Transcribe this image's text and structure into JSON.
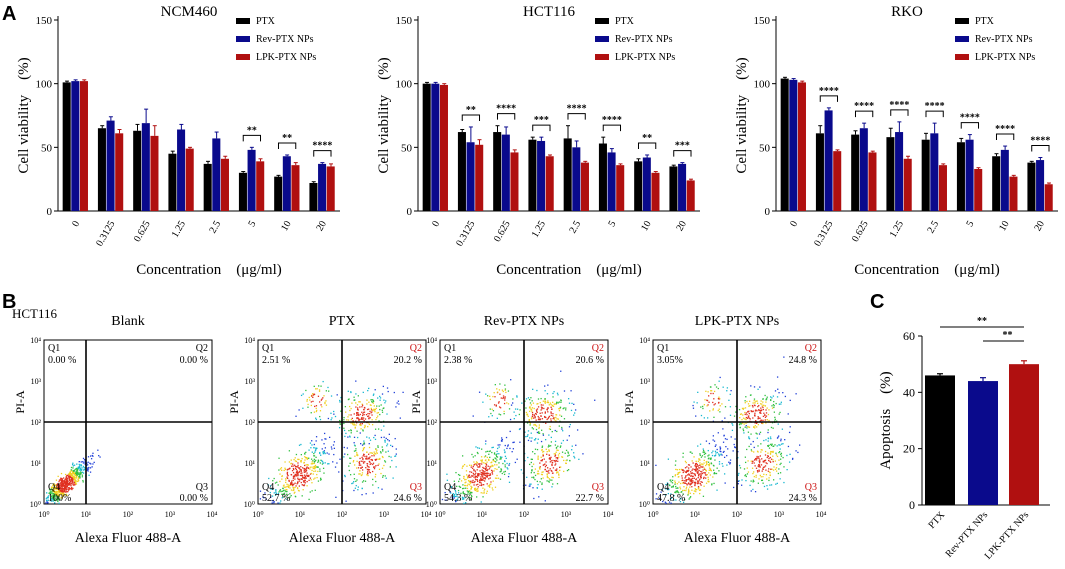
{
  "panel_labels": {
    "a": "A",
    "b": "B",
    "c": "C"
  },
  "colors": {
    "PTX": "#000000",
    "Rev-PTX NPs": "#0a0a8c",
    "LPK-PTX NPs": "#b01010"
  },
  "chart_data": [
    {
      "type": "bar",
      "title": "NCM460",
      "categories": [
        "0",
        "0.3125",
        "0.625",
        "1.25",
        "2.5",
        "5",
        "10",
        "20"
      ],
      "series": [
        {
          "name": "PTX",
          "values": [
            101,
            65,
            63,
            45,
            37,
            30,
            27,
            22
          ],
          "errors": [
            1,
            2,
            5,
            2,
            2,
            1,
            1,
            1
          ]
        },
        {
          "name": "Rev-PTX NPs",
          "values": [
            102,
            71,
            69,
            64,
            57,
            48,
            43,
            37
          ],
          "errors": [
            1,
            3,
            11,
            4,
            5,
            2,
            1,
            1
          ]
        },
        {
          "name": "LPK-PTX NPs",
          "values": [
            102,
            61,
            59,
            49,
            41,
            39,
            36,
            35
          ],
          "errors": [
            1,
            3,
            8,
            1,
            2,
            2,
            2,
            2
          ]
        }
      ],
      "xlabel": "Concentration　(μg/ml)",
      "ylabel": "Cell viability　(%)",
      "ylim": [
        0,
        150
      ],
      "yticks": [
        "0",
        "50",
        "100",
        "150"
      ],
      "significance": [
        {
          "from": "5",
          "label": "**"
        },
        {
          "from": "10",
          "label": "**"
        },
        {
          "from": "20",
          "label": "****"
        }
      ]
    },
    {
      "type": "bar",
      "title": "HCT116",
      "categories": [
        "0",
        "0.3125",
        "0.625",
        "1.25",
        "2.5",
        "5",
        "10",
        "20"
      ],
      "series": [
        {
          "name": "PTX",
          "values": [
            100,
            62,
            62,
            56,
            57,
            53,
            39,
            35
          ],
          "errors": [
            1,
            2,
            5,
            2,
            10,
            5,
            2,
            1
          ]
        },
        {
          "name": "Rev-PTX NPs",
          "values": [
            100,
            54,
            60,
            55,
            50,
            46,
            42,
            37
          ],
          "errors": [
            1,
            12,
            6,
            3,
            5,
            3,
            2,
            1
          ]
        },
        {
          "name": "LPK-PTX NPs",
          "values": [
            99,
            52,
            46,
            43,
            38,
            36,
            30,
            24
          ],
          "errors": [
            1,
            4,
            2,
            1,
            1,
            1,
            1,
            1
          ]
        }
      ],
      "xlabel": "Concentration　(μg/ml)",
      "ylabel": "Cell viability　(%)",
      "ylim": [
        0,
        150
      ],
      "yticks": [
        "0",
        "50",
        "100",
        "150"
      ],
      "significance": [
        {
          "from": "0.3125",
          "label": "**"
        },
        {
          "from": "0.625",
          "label": "****"
        },
        {
          "from": "1.25",
          "label": "***"
        },
        {
          "from": "2.5",
          "label": "****"
        },
        {
          "from": "5",
          "label": "****"
        },
        {
          "from": "10",
          "label": "**"
        },
        {
          "from": "20",
          "label": "***"
        }
      ]
    },
    {
      "type": "bar",
      "title": "RKO",
      "categories": [
        "0",
        "0.3125",
        "0.625",
        "1.25",
        "2.5",
        "5",
        "10",
        "20"
      ],
      "series": [
        {
          "name": "PTX",
          "values": [
            104,
            61,
            60,
            58,
            56,
            54,
            43,
            38
          ],
          "errors": [
            1,
            6,
            3,
            7,
            5,
            3,
            2,
            1
          ]
        },
        {
          "name": "Rev-PTX NPs",
          "values": [
            103,
            79,
            65,
            62,
            61,
            56,
            48,
            40
          ],
          "errors": [
            1,
            2,
            4,
            8,
            8,
            4,
            3,
            2
          ]
        },
        {
          "name": "LPK-PTX NPs",
          "values": [
            101,
            47,
            46,
            41,
            36,
            33,
            27,
            21
          ],
          "errors": [
            1,
            1,
            1,
            2,
            1,
            1,
            1,
            1
          ]
        }
      ],
      "xlabel": "Concentration　(μg/ml)",
      "ylabel": "Cell viability　(%)",
      "ylim": [
        0,
        150
      ],
      "yticks": [
        "0",
        "50",
        "100",
        "150"
      ],
      "significance": [
        {
          "from": "0.3125",
          "label": "****"
        },
        {
          "from": "0.625",
          "label": "****"
        },
        {
          "from": "1.25",
          "label": "****"
        },
        {
          "from": "2.5",
          "label": "****"
        },
        {
          "from": "5",
          "label": "****"
        },
        {
          "from": "10",
          "label": "****"
        },
        {
          "from": "20",
          "label": "****"
        }
      ]
    },
    {
      "type": "scatter",
      "title": "Blank",
      "cell_line": "HCT116",
      "xlabel": "Alexa Fluor 488-A",
      "ylabel": "PI-A",
      "ticks": [
        "10⁰",
        "10¹",
        "10²",
        "10³",
        "10⁴"
      ],
      "quadrants": {
        "Q1": {
          "label": "Q1",
          "value": "0.00 %"
        },
        "Q2": {
          "label": "Q2",
          "value": "0.00 %"
        },
        "Q3": {
          "label": "Q3",
          "value": "0.00 %"
        },
        "Q4": {
          "label": "Q4",
          "value": "100%"
        }
      }
    },
    {
      "type": "scatter",
      "title": "PTX",
      "xlabel": "Alexa Fluor 488-A",
      "ylabel": "PI-A",
      "ticks": [
        "10⁰",
        "10¹",
        "10²",
        "10³",
        "10⁴"
      ],
      "quadrants": {
        "Q1": {
          "label": "Q1",
          "value": "2.51 %"
        },
        "Q2": {
          "label": "Q2",
          "value": "20.2 %"
        },
        "Q3": {
          "label": "Q3",
          "value": "24.6 %"
        },
        "Q4": {
          "label": "Q4",
          "value": "52.7 %"
        }
      }
    },
    {
      "type": "scatter",
      "title": "Rev-PTX NPs",
      "xlabel": "Alexa Fluor 488-A",
      "ylabel": "PI-A",
      "ticks": [
        "10⁰",
        "10¹",
        "10²",
        "10³",
        "10⁴"
      ],
      "quadrants": {
        "Q1": {
          "label": "Q1",
          "value": "2.38 %"
        },
        "Q2": {
          "label": "Q2",
          "value": "20.6 %"
        },
        "Q3": {
          "label": "Q3",
          "value": "22.7 %"
        },
        "Q4": {
          "label": "Q4",
          "value": "54.3 %"
        }
      }
    },
    {
      "type": "scatter",
      "title": "LPK-PTX NPs",
      "xlabel": "Alexa Fluor 488-A",
      "ylabel": "PI-A",
      "ticks": [
        "10⁰",
        "10¹",
        "10²",
        "10³",
        "10⁴"
      ],
      "quadrants": {
        "Q1": {
          "label": "Q1",
          "value": "3.05%"
        },
        "Q2": {
          "label": "Q2",
          "value": "24.8 %"
        },
        "Q3": {
          "label": "Q3",
          "value": "24.3 %"
        },
        "Q4": {
          "label": "Q4",
          "value": "47.8 %"
        }
      }
    },
    {
      "type": "bar",
      "title": "",
      "categories": [
        "PTX",
        "Rev-PTX NPs",
        "LPK-PTX NPs"
      ],
      "values": [
        46,
        44,
        50
      ],
      "errors": [
        0.6,
        1.2,
        1.2
      ],
      "ylabel": "Apoptosis　(%)",
      "ylim": [
        0,
        60
      ],
      "yticks": [
        "0",
        "20",
        "40",
        "60"
      ],
      "significance": [
        {
          "from": "PTX",
          "to": "LPK-PTX NPs",
          "label": "**"
        },
        {
          "from": "Rev-PTX NPs",
          "to": "LPK-PTX NPs",
          "label": "**"
        }
      ]
    }
  ]
}
